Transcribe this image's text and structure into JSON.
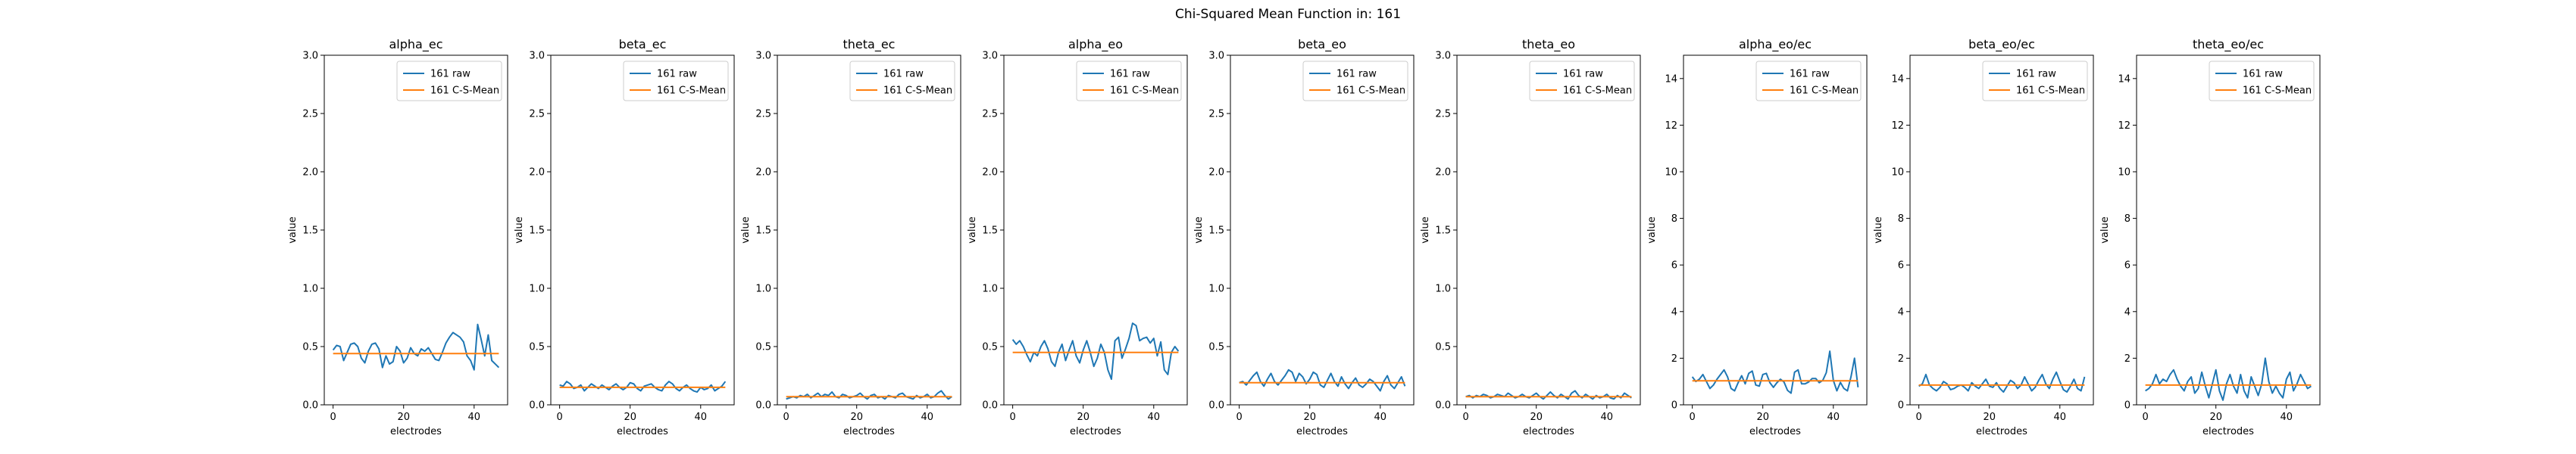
{
  "figure": {
    "suptitle": "Chi-Squared Mean Function in: 161"
  },
  "colors": {
    "raw": "#1f77b4",
    "mean": "#ff7f0e",
    "axis": "#000000",
    "legend_border": "#cccccc"
  },
  "chart_data": [
    {
      "type": "line",
      "title": "alpha_ec",
      "xlabel": "electrodes",
      "ylabel": "value",
      "xlim": [
        -2.5,
        49.5
      ],
      "ylim": [
        0,
        3.0
      ],
      "xticks": [
        0,
        20,
        40
      ],
      "yticks": [
        0.0,
        0.5,
        1.0,
        1.5,
        2.0,
        2.5,
        3.0
      ],
      "ytick_labels": [
        "0.0",
        "0.5",
        "1.0",
        "1.5",
        "2.0",
        "2.5",
        "3.0"
      ],
      "legend_position": "upper-right",
      "series": [
        {
          "name": "161 raw",
          "color": "raw",
          "values": [
            0.47,
            0.51,
            0.5,
            0.38,
            0.45,
            0.52,
            0.53,
            0.5,
            0.4,
            0.36,
            0.46,
            0.52,
            0.53,
            0.48,
            0.32,
            0.42,
            0.35,
            0.37,
            0.5,
            0.46,
            0.36,
            0.4,
            0.49,
            0.44,
            0.42,
            0.48,
            0.46,
            0.49,
            0.44,
            0.39,
            0.38,
            0.45,
            0.53,
            0.58,
            0.62,
            0.6,
            0.58,
            0.54,
            0.42,
            0.38,
            0.3,
            0.69,
            0.56,
            0.42,
            0.6,
            0.38,
            0.35,
            0.32
          ]
        },
        {
          "name": "161 C-S-Mean",
          "color": "mean",
          "values": [
            0.44,
            0.44
          ]
        }
      ]
    },
    {
      "type": "line",
      "title": "beta_ec",
      "xlabel": "electrodes",
      "ylabel": "value",
      "xlim": [
        -2.5,
        49.5
      ],
      "ylim": [
        0,
        3.0
      ],
      "xticks": [
        0,
        20,
        40
      ],
      "yticks": [
        0.0,
        0.5,
        1.0,
        1.5,
        2.0,
        2.5,
        3.0
      ],
      "ytick_labels": [
        "0.0",
        "0.5",
        "1.0",
        "1.5",
        "2.0",
        "2.5",
        "3.0"
      ],
      "legend_position": "upper-right",
      "series": [
        {
          "name": "161 raw",
          "color": "raw",
          "values": [
            0.17,
            0.16,
            0.2,
            0.18,
            0.14,
            0.15,
            0.17,
            0.12,
            0.15,
            0.18,
            0.16,
            0.14,
            0.17,
            0.15,
            0.13,
            0.16,
            0.18,
            0.15,
            0.13,
            0.15,
            0.19,
            0.18,
            0.14,
            0.12,
            0.16,
            0.17,
            0.18,
            0.15,
            0.13,
            0.12,
            0.17,
            0.2,
            0.18,
            0.14,
            0.12,
            0.15,
            0.17,
            0.14,
            0.12,
            0.11,
            0.15,
            0.13,
            0.14,
            0.17,
            0.12,
            0.14,
            0.16,
            0.2
          ]
        },
        {
          "name": "161 C-S-Mean",
          "color": "mean",
          "values": [
            0.15,
            0.15
          ]
        }
      ]
    },
    {
      "type": "line",
      "title": "theta_ec",
      "xlabel": "electrodes",
      "ylabel": "value",
      "xlim": [
        -2.5,
        49.5
      ],
      "ylim": [
        0,
        3.0
      ],
      "xticks": [
        0,
        20,
        40
      ],
      "yticks": [
        0.0,
        0.5,
        1.0,
        1.5,
        2.0,
        2.5,
        3.0
      ],
      "ytick_labels": [
        "0.0",
        "0.5",
        "1.0",
        "1.5",
        "2.0",
        "2.5",
        "3.0"
      ],
      "legend_position": "upper-right",
      "series": [
        {
          "name": "161 raw",
          "color": "raw",
          "values": [
            0.05,
            0.06,
            0.07,
            0.06,
            0.08,
            0.07,
            0.09,
            0.06,
            0.08,
            0.1,
            0.07,
            0.09,
            0.08,
            0.11,
            0.07,
            0.06,
            0.09,
            0.08,
            0.06,
            0.07,
            0.08,
            0.1,
            0.07,
            0.05,
            0.08,
            0.09,
            0.06,
            0.07,
            0.05,
            0.08,
            0.07,
            0.06,
            0.09,
            0.1,
            0.07,
            0.06,
            0.05,
            0.08,
            0.06,
            0.07,
            0.09,
            0.06,
            0.07,
            0.1,
            0.12,
            0.08,
            0.05,
            0.07
          ]
        },
        {
          "name": "161 C-S-Mean",
          "color": "mean",
          "values": [
            0.07,
            0.07
          ]
        }
      ]
    },
    {
      "type": "line",
      "title": "alpha_eo",
      "xlabel": "electrodes",
      "ylabel": "value",
      "xlim": [
        -2.5,
        49.5
      ],
      "ylim": [
        0,
        3.0
      ],
      "xticks": [
        0,
        20,
        40
      ],
      "yticks": [
        0.0,
        0.5,
        1.0,
        1.5,
        2.0,
        2.5,
        3.0
      ],
      "ytick_labels": [
        "0.0",
        "0.5",
        "1.0",
        "1.5",
        "2.0",
        "2.5",
        "3.0"
      ],
      "legend_position": "upper-right",
      "series": [
        {
          "name": "161 raw",
          "color": "raw",
          "values": [
            0.56,
            0.52,
            0.55,
            0.5,
            0.43,
            0.37,
            0.45,
            0.42,
            0.5,
            0.55,
            0.48,
            0.37,
            0.33,
            0.45,
            0.52,
            0.38,
            0.47,
            0.55,
            0.42,
            0.36,
            0.47,
            0.55,
            0.45,
            0.33,
            0.4,
            0.52,
            0.45,
            0.3,
            0.22,
            0.55,
            0.58,
            0.4,
            0.48,
            0.57,
            0.7,
            0.68,
            0.55,
            0.57,
            0.58,
            0.53,
            0.57,
            0.42,
            0.54,
            0.3,
            0.26,
            0.45,
            0.5,
            0.46
          ]
        },
        {
          "name": "161 C-S-Mean",
          "color": "mean",
          "values": [
            0.45,
            0.45
          ]
        }
      ]
    },
    {
      "type": "line",
      "title": "beta_eo",
      "xlabel": "electrodes",
      "ylabel": "value",
      "xlim": [
        -2.5,
        49.5
      ],
      "ylim": [
        0,
        3.0
      ],
      "xticks": [
        0,
        20,
        40
      ],
      "yticks": [
        0.0,
        0.5,
        1.0,
        1.5,
        2.0,
        2.5,
        3.0
      ],
      "ytick_labels": [
        "0.0",
        "0.5",
        "1.0",
        "1.5",
        "2.0",
        "2.5",
        "3.0"
      ],
      "legend_position": "upper-right",
      "series": [
        {
          "name": "161 raw",
          "color": "raw",
          "values": [
            0.19,
            0.2,
            0.17,
            0.21,
            0.25,
            0.28,
            0.2,
            0.16,
            0.22,
            0.27,
            0.2,
            0.17,
            0.21,
            0.25,
            0.3,
            0.28,
            0.2,
            0.27,
            0.24,
            0.18,
            0.22,
            0.28,
            0.26,
            0.17,
            0.15,
            0.21,
            0.27,
            0.2,
            0.16,
            0.24,
            0.18,
            0.14,
            0.19,
            0.23,
            0.17,
            0.15,
            0.18,
            0.22,
            0.2,
            0.16,
            0.12,
            0.2,
            0.25,
            0.17,
            0.14,
            0.19,
            0.24,
            0.16
          ]
        },
        {
          "name": "161 C-S-Mean",
          "color": "mean",
          "values": [
            0.19,
            0.19
          ]
        }
      ]
    },
    {
      "type": "line",
      "title": "theta_eo",
      "xlabel": "electrodes",
      "ylabel": "value",
      "xlim": [
        -2.5,
        49.5
      ],
      "ylim": [
        0,
        3.0
      ],
      "xticks": [
        0,
        20,
        40
      ],
      "yticks": [
        0.0,
        0.5,
        1.0,
        1.5,
        2.0,
        2.5,
        3.0
      ],
      "ytick_labels": [
        "0.0",
        "0.5",
        "1.0",
        "1.5",
        "2.0",
        "2.5",
        "3.0"
      ],
      "legend_position": "upper-right",
      "series": [
        {
          "name": "161 raw",
          "color": "raw",
          "values": [
            0.07,
            0.08,
            0.06,
            0.08,
            0.07,
            0.09,
            0.08,
            0.06,
            0.07,
            0.09,
            0.08,
            0.07,
            0.1,
            0.08,
            0.06,
            0.07,
            0.09,
            0.07,
            0.06,
            0.08,
            0.1,
            0.07,
            0.05,
            0.08,
            0.11,
            0.08,
            0.06,
            0.09,
            0.07,
            0.05,
            0.1,
            0.12,
            0.08,
            0.06,
            0.09,
            0.07,
            0.05,
            0.08,
            0.06,
            0.07,
            0.09,
            0.06,
            0.05,
            0.08,
            0.06,
            0.1,
            0.08,
            0.06
          ]
        },
        {
          "name": "161 C-S-Mean",
          "color": "mean",
          "values": [
            0.07,
            0.07
          ]
        }
      ]
    },
    {
      "type": "line",
      "title": "alpha_eo/ec",
      "xlabel": "electrodes",
      "ylabel": "value",
      "xlim": [
        -2.5,
        49.5
      ],
      "ylim": [
        0,
        15
      ],
      "xticks": [
        0,
        20,
        40
      ],
      "yticks": [
        0,
        2,
        4,
        6,
        8,
        10,
        12,
        14
      ],
      "ytick_labels": [
        "0",
        "2",
        "4",
        "6",
        "8",
        "10",
        "12",
        "14"
      ],
      "legend_position": "upper-right",
      "series": [
        {
          "name": "161 raw",
          "color": "raw",
          "values": [
            1.2,
            1.0,
            1.1,
            1.3,
            1.0,
            0.7,
            0.85,
            1.1,
            1.3,
            1.5,
            1.2,
            0.7,
            0.6,
            0.95,
            1.25,
            0.9,
            1.35,
            1.45,
            0.85,
            0.8,
            1.3,
            1.35,
            0.95,
            0.75,
            0.95,
            1.1,
            0.98,
            0.62,
            0.5,
            1.4,
            1.5,
            0.9,
            0.9,
            0.98,
            1.13,
            1.13,
            0.95,
            1.05,
            1.38,
            2.3,
            1.05,
            0.6,
            0.96,
            0.7,
            0.6,
            1.2,
            2.0,
            0.75
          ]
        },
        {
          "name": "161 C-S-Mean",
          "color": "mean",
          "values": [
            1.03,
            1.03
          ]
        }
      ]
    },
    {
      "type": "line",
      "title": "beta_eo/ec",
      "xlabel": "electrodes",
      "ylabel": "value",
      "xlim": [
        -2.5,
        49.5
      ],
      "ylim": [
        0,
        15
      ],
      "xticks": [
        0,
        20,
        40
      ],
      "yticks": [
        0,
        2,
        4,
        6,
        8,
        10,
        12,
        14
      ],
      "ytick_labels": [
        "0",
        "2",
        "4",
        "6",
        "8",
        "10",
        "12",
        "14"
      ],
      "legend_position": "upper-right",
      "series": [
        {
          "name": "161 raw",
          "color": "raw",
          "values": [
            0.8,
            0.9,
            1.3,
            0.85,
            0.7,
            0.6,
            0.75,
            1.0,
            0.9,
            0.65,
            0.7,
            0.8,
            0.85,
            0.75,
            0.6,
            0.95,
            0.8,
            0.7,
            0.9,
            1.1,
            0.8,
            0.75,
            0.95,
            0.7,
            0.55,
            0.8,
            1.05,
            0.95,
            0.7,
            0.85,
            1.2,
            0.9,
            0.6,
            0.75,
            1.05,
            1.3,
            0.9,
            0.7,
            1.1,
            1.4,
            1.0,
            0.65,
            0.55,
            0.8,
            1.1,
            0.7,
            0.6,
            1.2
          ]
        },
        {
          "name": "161 C-S-Mean",
          "color": "mean",
          "values": [
            0.85,
            0.85
          ]
        }
      ]
    },
    {
      "type": "line",
      "title": "theta_eo/ec",
      "xlabel": "electrodes",
      "ylabel": "value",
      "xlim": [
        -2.5,
        49.5
      ],
      "ylim": [
        0,
        15
      ],
      "xticks": [
        0,
        20,
        40
      ],
      "yticks": [
        0,
        2,
        4,
        6,
        8,
        10,
        12,
        14
      ],
      "ytick_labels": [
        "0",
        "2",
        "4",
        "6",
        "8",
        "10",
        "12",
        "14"
      ],
      "legend_position": "upper-right",
      "series": [
        {
          "name": "161 raw",
          "color": "raw",
          "values": [
            0.6,
            0.7,
            0.9,
            1.3,
            0.9,
            1.1,
            1.0,
            1.3,
            1.5,
            1.1,
            0.8,
            0.6,
            1.0,
            1.2,
            0.5,
            0.7,
            1.4,
            0.8,
            0.3,
            0.9,
            1.5,
            0.6,
            0.2,
            0.9,
            1.3,
            0.8,
            0.5,
            1.3,
            0.6,
            0.3,
            1.2,
            0.8,
            0.4,
            0.9,
            2.0,
            1.0,
            0.5,
            0.8,
            0.5,
            0.3,
            1.1,
            1.4,
            0.6,
            0.9,
            1.3,
            1.0,
            0.7,
            0.8
          ]
        },
        {
          "name": "161 C-S-Mean",
          "color": "mean",
          "values": [
            0.85,
            0.85
          ]
        }
      ]
    }
  ]
}
